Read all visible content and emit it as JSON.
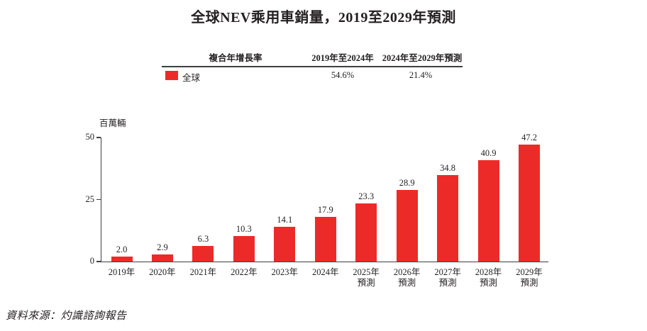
{
  "title": "全球NEV乘用車銷量，2019至2029年預測",
  "cagr_table": {
    "headers": {
      "metric": "複合年增長率",
      "period1": "2019年至2024年",
      "period2": "2024年至2029年預測"
    },
    "row": {
      "legend_color": "#ec2b28",
      "label": "全球",
      "period1": "54.6%",
      "period2": "21.4%"
    }
  },
  "chart_data": {
    "type": "bar",
    "title": "全球NEV乘用車銷量，2019至2029年預測",
    "xlabel": "",
    "ylabel": "百萬輛",
    "ylim": [
      0,
      50
    ],
    "yticks": [
      0,
      25,
      50
    ],
    "grid": "off",
    "legend_position": "table-top",
    "series_name": "全球",
    "bar_color": "#ec2b28",
    "categories": [
      "2019年",
      "2020年",
      "2021年",
      "2022年",
      "2023年",
      "2024年",
      "2025年預測",
      "2026年預測",
      "2027年預測",
      "2028年預測",
      "2029年預測"
    ],
    "x_tick_lines": [
      [
        "2019年"
      ],
      [
        "2020年"
      ],
      [
        "2021年"
      ],
      [
        "2022年"
      ],
      [
        "2023年"
      ],
      [
        "2024年"
      ],
      [
        "2025年",
        "預測"
      ],
      [
        "2026年",
        "預測"
      ],
      [
        "2027年",
        "預測"
      ],
      [
        "2028年",
        "預測"
      ],
      [
        "2029年",
        "預測"
      ]
    ],
    "values": [
      2.0,
      2.9,
      6.3,
      10.3,
      14.1,
      17.9,
      23.3,
      28.9,
      34.8,
      40.9,
      47.2
    ]
  },
  "source": "資料來源：灼識諮詢報告"
}
